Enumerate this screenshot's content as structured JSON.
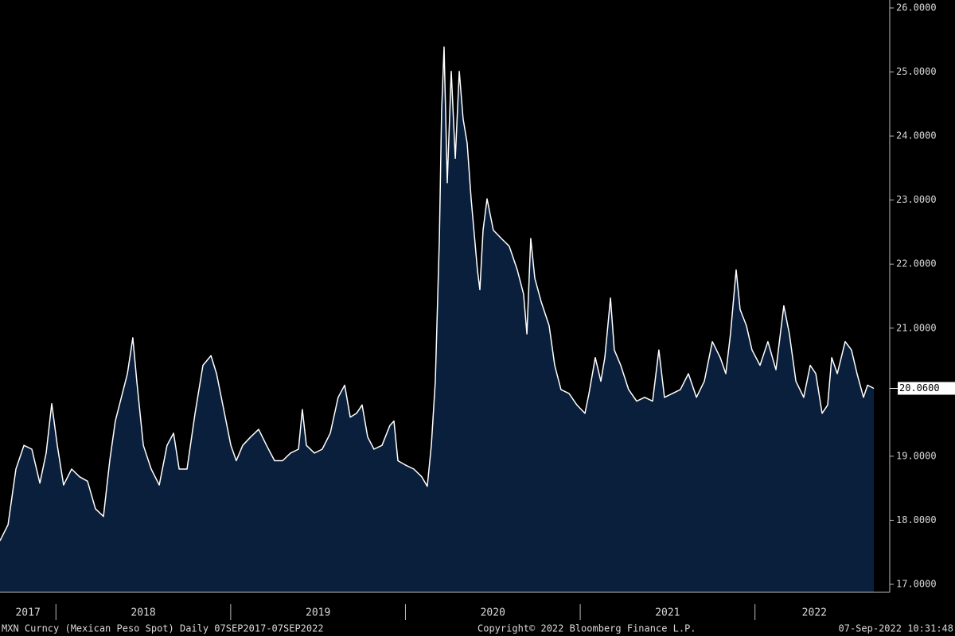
{
  "chart_data": {
    "type": "area",
    "footer_left": "MXN Curncy (Mexican Peso Spot)  Daily 07SEP2017-07SEP2022",
    "footer_center": "Copyright© 2022 Bloomberg Finance L.P.",
    "footer_right": "07-Sep-2022 10:31:48",
    "year_labels": [
      "2017",
      "2018",
      "2019",
      "2020",
      "2021",
      "2022"
    ],
    "xlim": [
      2017.68,
      2022.68
    ],
    "xticks": [
      2018,
      2019,
      2020,
      2021,
      2022
    ],
    "ylim": [
      17,
      26
    ],
    "yticks": [
      {
        "value": 17,
        "label": "17.0000"
      },
      {
        "value": 18,
        "label": "18.0000"
      },
      {
        "value": 19,
        "label": "19.0000"
      },
      {
        "value": 21,
        "label": "21.0000"
      },
      {
        "value": 22,
        "label": "22.0000"
      },
      {
        "value": 23,
        "label": "23.0000"
      },
      {
        "value": 24,
        "label": "24.0000"
      },
      {
        "value": 25,
        "label": "25.0000"
      },
      {
        "value": 26,
        "label": "26.0000"
      }
    ],
    "last_value": 20.06,
    "last_value_label": "20.0600",
    "series": [
      {
        "name": "MXN Curncy",
        "color": "#ffffff",
        "fill": "#0a1f3c",
        "x": [
          2017.68,
          2017.726,
          2017.771,
          2017.817,
          2017.862,
          2017.908,
          2017.944,
          2017.976,
          2018.008,
          2018.044,
          2018.09,
          2018.135,
          2018.181,
          2018.226,
          2018.272,
          2018.308,
          2018.34,
          2018.386,
          2018.409,
          2018.44,
          2018.463,
          2018.5,
          2018.545,
          2018.591,
          2018.636,
          2018.673,
          2018.705,
          2018.75,
          2018.796,
          2018.841,
          2018.887,
          2018.919,
          2018.955,
          2019.001,
          2019.032,
          2019.069,
          2019.114,
          2019.16,
          2019.205,
          2019.251,
          2019.297,
          2019.342,
          2019.388,
          2019.41,
          2019.433,
          2019.479,
          2019.524,
          2019.57,
          2019.615,
          2019.652,
          2019.684,
          2019.72,
          2019.752,
          2019.784,
          2019.82,
          2019.866,
          2019.911,
          2019.934,
          2019.957,
          2020.002,
          2020.048,
          2020.093,
          2020.125,
          2020.148,
          2020.171,
          2020.194,
          2020.207,
          2020.221,
          2020.239,
          2020.262,
          2020.285,
          2020.308,
          2020.33,
          2020.353,
          2020.376,
          2020.412,
          2020.426,
          2020.444,
          2020.467,
          2020.503,
          2020.549,
          2020.594,
          2020.64,
          2020.676,
          2020.695,
          2020.717,
          2020.74,
          2020.777,
          2020.822,
          2020.854,
          2020.89,
          2020.936,
          2020.981,
          2021.027,
          2021.05,
          2021.086,
          2021.118,
          2021.141,
          2021.173,
          2021.195,
          2021.232,
          2021.277,
          2021.323,
          2021.369,
          2021.414,
          2021.45,
          2021.482,
          2021.528,
          2021.573,
          2021.619,
          2021.665,
          2021.71,
          2021.756,
          2021.801,
          2021.833,
          2021.86,
          2021.892,
          2021.915,
          2021.951,
          2021.983,
          2022.029,
          2022.074,
          2022.12,
          2022.165,
          2022.197,
          2022.234,
          2022.279,
          2022.316,
          2022.348,
          2022.384,
          2022.416,
          2022.439,
          2022.471,
          2022.516,
          2022.552,
          2022.584,
          2022.621,
          2022.644,
          2022.68
        ],
        "values": [
          17.68,
          17.93,
          18.8,
          19.17,
          19.11,
          18.58,
          19.05,
          19.82,
          19.17,
          18.55,
          18.8,
          18.68,
          18.61,
          18.18,
          18.06,
          18.93,
          19.55,
          20.04,
          20.29,
          20.85,
          20.17,
          19.17,
          18.8,
          18.55,
          19.17,
          19.36,
          18.8,
          18.8,
          19.67,
          20.42,
          20.57,
          20.29,
          19.8,
          19.17,
          18.93,
          19.17,
          19.3,
          19.42,
          19.17,
          18.93,
          18.93,
          19.05,
          19.11,
          19.73,
          19.17,
          19.05,
          19.11,
          19.36,
          19.92,
          20.11,
          19.61,
          19.67,
          19.8,
          19.3,
          19.11,
          19.17,
          19.48,
          19.55,
          18.93,
          18.86,
          18.8,
          18.68,
          18.53,
          19.17,
          20.17,
          22.4,
          24.39,
          25.39,
          23.27,
          25.01,
          23.65,
          25.01,
          24.27,
          23.89,
          23.02,
          21.91,
          21.6,
          22.53,
          23.02,
          22.53,
          22.4,
          22.28,
          21.91,
          21.53,
          20.91,
          22.4,
          21.78,
          21.41,
          21.04,
          20.42,
          20.04,
          19.98,
          19.8,
          19.67,
          19.98,
          20.54,
          20.17,
          20.54,
          21.47,
          20.66,
          20.42,
          20.04,
          19.86,
          19.92,
          19.86,
          20.66,
          19.92,
          19.98,
          20.04,
          20.29,
          19.92,
          20.17,
          20.79,
          20.54,
          20.29,
          20.91,
          21.91,
          21.29,
          21.04,
          20.66,
          20.42,
          20.79,
          20.35,
          21.35,
          20.91,
          20.17,
          19.92,
          20.42,
          20.29,
          19.67,
          19.8,
          20.54,
          20.29,
          20.79,
          20.66,
          20.29,
          19.92,
          20.11,
          20.06
        ]
      }
    ]
  }
}
